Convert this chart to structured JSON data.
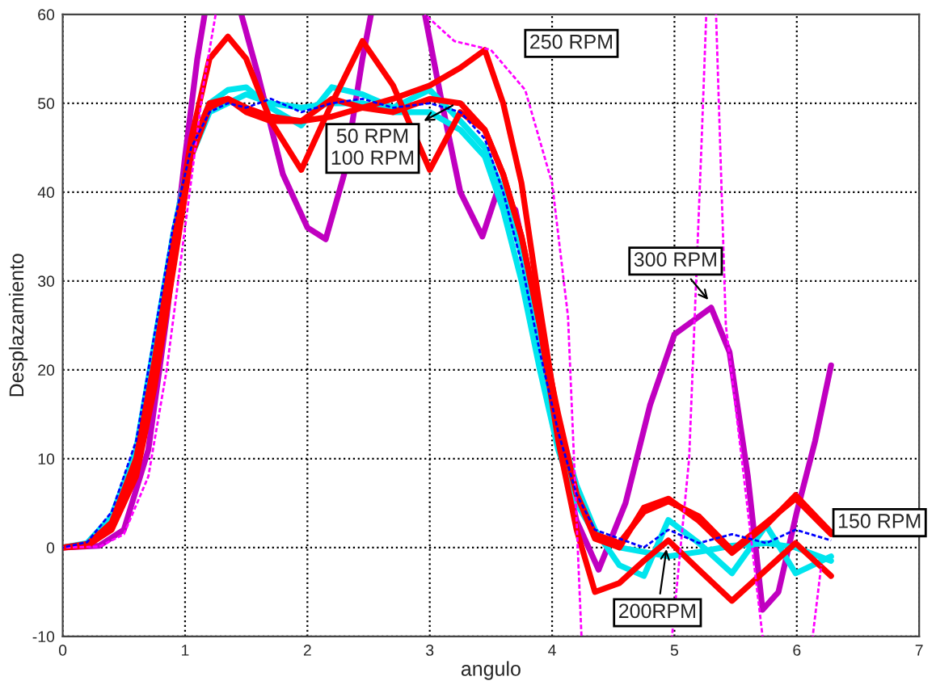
{
  "chart_data": {
    "type": "line",
    "xlabel": "angulo",
    "ylabel": "Desplazamiento",
    "x": [
      0,
      0.2,
      0.4,
      0.6,
      0.75,
      0.9,
      1.05,
      1.2,
      1.35,
      1.5,
      1.7,
      1.95,
      2.2,
      2.45,
      2.7,
      3.0,
      3.25,
      3.45,
      3.6,
      3.75,
      3.9,
      4.05,
      4.2,
      4.35,
      4.55,
      4.75,
      4.95,
      5.2,
      5.47,
      5.75,
      5.99,
      6.28
    ],
    "xlim": [
      0,
      7
    ],
    "xticks": [
      0,
      1,
      2,
      3,
      4,
      5,
      6,
      7
    ],
    "ylim": [
      -10,
      60
    ],
    "yticks": [
      -10,
      0,
      10,
      20,
      30,
      40,
      50,
      60
    ],
    "grid": true,
    "marker": "none",
    "series": [
      {
        "color": "#ff00ff",
        "line_style": "dashed",
        "x": [
          0,
          0.3,
          0.5,
          0.7,
          0.85,
          1.0,
          1.15,
          1.25,
          1.4,
          2.96,
          3.2,
          3.5,
          3.78,
          4.0,
          4.13,
          4.24,
          4.6,
          4.98,
          5.12,
          5.22,
          5.26,
          5.3,
          5.34,
          5.42,
          5.55,
          5.72,
          5.9,
          6.13,
          6.2
        ],
        "values": [
          0,
          0.1,
          1.5,
          8,
          20,
          36,
          52,
          60,
          null,
          60,
          57,
          56,
          51.5,
          41,
          26,
          -10,
          null,
          -10,
          10,
          45,
          60,
          null,
          60,
          25,
          10,
          -10,
          null,
          -10,
          -2
        ]
      },
      {
        "color": "#c000c0",
        "line_style": "solid",
        "x": [
          0,
          0.3,
          0.5,
          0.7,
          0.85,
          1.0,
          1.1,
          1.16,
          1.3,
          1.46,
          1.6,
          1.8,
          2.0,
          2.15,
          2.3,
          2.45,
          2.52,
          2.75,
          2.96,
          3.1,
          3.25,
          3.43,
          3.55,
          3.7,
          3.85,
          4.0,
          4.2,
          4.38,
          4.6,
          4.8,
          5.0,
          5.15,
          5.3,
          5.45,
          5.6,
          5.72,
          5.85,
          6.0,
          6.15,
          6.28
        ],
        "values": [
          0,
          0.2,
          2,
          11,
          26,
          44,
          55,
          60,
          null,
          60,
          53,
          42,
          36,
          34.7,
          42,
          55,
          60,
          null,
          60,
          50,
          40,
          35,
          40,
          38,
          28,
          15,
          3,
          -2.5,
          5,
          16,
          24,
          25.5,
          27,
          22,
          8,
          -7,
          -5,
          4,
          12,
          20.5
        ]
      },
      {
        "color": "#0000ff",
        "line_style": "dashed",
        "values": [
          0,
          0.6,
          4,
          12,
          24,
          36,
          45,
          49,
          50,
          49.5,
          50.5,
          49,
          50,
          50.5,
          49.5,
          50,
          49,
          46,
          40,
          32,
          22,
          13,
          6,
          2,
          1,
          0,
          2,
          0.5,
          1.5,
          0.5,
          2,
          0.8
        ]
      },
      {
        "color": "#00e5ee",
        "line_style": "solid",
        "values": [
          0,
          0.5,
          3.5,
          11,
          23,
          35,
          45,
          50,
          51.5,
          51.8,
          49.5,
          47.5,
          51.8,
          51,
          49.5,
          51.5,
          48,
          45,
          40,
          33,
          23,
          14,
          7,
          2,
          -2,
          -3.2,
          3.1,
          0.5,
          -2.9,
          2.5,
          -2.9,
          -1
        ]
      },
      {
        "color": "#00e5ee",
        "line_style": "solid",
        "values": [
          0,
          0.4,
          3,
          10,
          22,
          34,
          44,
          49,
          50,
          51,
          50,
          49.5,
          50,
          50,
          49,
          49,
          47,
          44,
          38,
          30,
          20,
          11,
          5,
          1.5,
          0,
          -0.5,
          -1,
          -0.5,
          0.2,
          0.5,
          0,
          -1.5
        ]
      },
      {
        "color": "#ff0000",
        "line_style": "solid",
        "values": [
          0,
          0.2,
          2,
          8,
          18,
          31,
          44,
          49.5,
          50.5,
          49,
          48,
          48,
          48.5,
          49.5,
          50.5,
          52,
          54,
          56,
          50,
          41,
          27,
          14,
          6,
          1.5,
          0.5,
          4,
          5.2,
          3.5,
          -0.3,
          2.8,
          5.5,
          1.5
        ]
      },
      {
        "color": "#ff0000",
        "line_style": "solid",
        "values": [
          0,
          0.3,
          2.8,
          10,
          21,
          34,
          45,
          50,
          50.5,
          49.5,
          48.5,
          48,
          50.5,
          49.5,
          49,
          50.5,
          50,
          47,
          42,
          35,
          25,
          15,
          6,
          1,
          0,
          4.5,
          5.5,
          3,
          -0.6,
          2.5,
          5.9,
          1.7
        ]
      },
      {
        "color": "#ff0000",
        "line_style": "solid",
        "values": [
          0,
          0.4,
          2.5,
          9,
          19,
          33,
          46,
          55,
          57.5,
          55,
          48,
          42.5,
          50,
          57,
          52,
          42.5,
          49,
          47,
          42,
          35,
          25,
          12,
          2,
          -5,
          -4,
          -1.5,
          0.8,
          -2.5,
          -6,
          -2.5,
          0.5,
          -3.2
        ]
      }
    ],
    "annotations": [
      {
        "text": "50 RPM\n100 RPM",
        "x": 3.22,
        "y": 50
      },
      {
        "text": "250 RPM",
        "x": 3.55,
        "y": 56
      },
      {
        "text": "300 RPM",
        "x": 5.3,
        "y": 27.5
      },
      {
        "text": "150 RPM",
        "x": 6.28,
        "y": 1.7
      },
      {
        "text": "200RPM",
        "x": 4.94,
        "y": 0.3
      }
    ]
  }
}
